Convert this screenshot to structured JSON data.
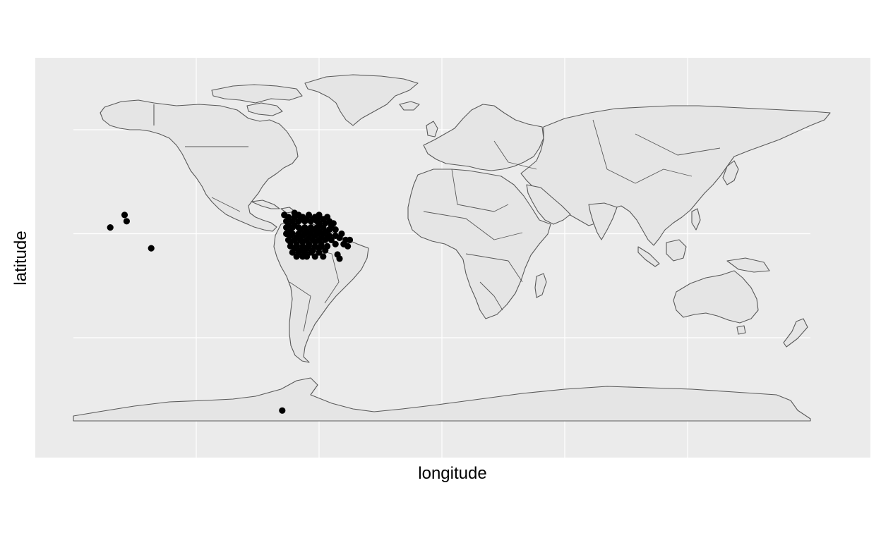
{
  "chart_data": {
    "type": "scatter",
    "title": "",
    "xlabel": "longitude",
    "ylabel": "latitude",
    "xlim": [
      -180,
      180
    ],
    "ylim": [
      -90,
      90
    ],
    "grid": true,
    "legend": "none",
    "colors": {
      "panel": "#ebebeb",
      "grid": "#ffffff",
      "land": "#e5e5e5",
      "border": "#595959",
      "points": "#000000"
    },
    "basemap": "world country borders",
    "points": [
      [
        -162,
        3
      ],
      [
        -154,
        6
      ],
      [
        -155,
        9
      ],
      [
        -142,
        -7
      ],
      [
        -78,
        -85
      ],
      [
        -77,
        9
      ],
      [
        -75,
        8
      ],
      [
        -72,
        10
      ],
      [
        -70,
        9
      ],
      [
        -68,
        8
      ],
      [
        -65,
        9
      ],
      [
        -62,
        8
      ],
      [
        -60,
        8
      ],
      [
        -58,
        7
      ],
      [
        -55,
        6
      ],
      [
        -53,
        5
      ],
      [
        -76,
        6
      ],
      [
        -73,
        6
      ],
      [
        -70,
        6
      ],
      [
        -67,
        6
      ],
      [
        -64,
        6
      ],
      [
        -61,
        6
      ],
      [
        -57,
        5
      ],
      [
        -54,
        4
      ],
      [
        -76,
        3
      ],
      [
        -73,
        3
      ],
      [
        -70,
        3
      ],
      [
        -67,
        3
      ],
      [
        -64,
        3
      ],
      [
        -61,
        3
      ],
      [
        -58,
        3
      ],
      [
        -55,
        2
      ],
      [
        -52,
        2
      ],
      [
        -76,
        0
      ],
      [
        -73,
        0
      ],
      [
        -70,
        0
      ],
      [
        -67,
        0
      ],
      [
        -64,
        0
      ],
      [
        -61,
        0
      ],
      [
        -58,
        0
      ],
      [
        -55,
        -1
      ],
      [
        -52,
        -1
      ],
      [
        -49,
        0
      ],
      [
        -75,
        -3
      ],
      [
        -72,
        -3
      ],
      [
        -69,
        -3
      ],
      [
        -66,
        -3
      ],
      [
        -63,
        -3
      ],
      [
        -60,
        -3
      ],
      [
        -57,
        -3
      ],
      [
        -54,
        -3
      ],
      [
        -50,
        -2
      ],
      [
        -47,
        -3
      ],
      [
        -45,
        -3
      ],
      [
        -74,
        -6
      ],
      [
        -71,
        -6
      ],
      [
        -68,
        -6
      ],
      [
        -65,
        -6
      ],
      [
        -62,
        -6
      ],
      [
        -59,
        -6
      ],
      [
        -56,
        -6
      ],
      [
        -52,
        -5
      ],
      [
        -48,
        -5
      ],
      [
        -46,
        -6
      ],
      [
        -73,
        -9
      ],
      [
        -70,
        -9
      ],
      [
        -67,
        -9
      ],
      [
        -64,
        -9
      ],
      [
        -60,
        -9
      ],
      [
        -57,
        -8
      ],
      [
        -51,
        -10
      ],
      [
        -50,
        -12
      ],
      [
        -71,
        -11
      ],
      [
        -68,
        -11
      ],
      [
        -66,
        -11
      ],
      [
        -62,
        -11
      ],
      [
        -58,
        -11
      ],
      [
        -74,
        1
      ],
      [
        -72,
        4
      ],
      [
        -69,
        2
      ],
      [
        -66,
        1
      ],
      [
        -63,
        2
      ],
      [
        -60,
        1
      ],
      [
        -57,
        1
      ],
      [
        -74,
        -1
      ],
      [
        -71,
        -2
      ],
      [
        -68,
        -1
      ],
      [
        -65,
        -2
      ],
      [
        -62,
        -1
      ],
      [
        -59,
        -2
      ],
      [
        -56,
        -2
      ],
      [
        -74,
        -4
      ],
      [
        -71,
        -5
      ],
      [
        -68,
        -4
      ],
      [
        -65,
        -5
      ],
      [
        -62,
        -4
      ],
      [
        -59,
        -5
      ],
      [
        -72,
        -7
      ],
      [
        -69,
        -8
      ],
      [
        -66,
        -7
      ],
      [
        -63,
        -8
      ],
      [
        -60,
        -7
      ],
      [
        -72,
        8
      ],
      [
        -69,
        7
      ],
      [
        -66,
        7
      ],
      [
        -63,
        7
      ],
      [
        -60,
        5
      ],
      [
        -75,
        4
      ],
      [
        -56,
        8
      ],
      [
        -60,
        9
      ]
    ]
  }
}
